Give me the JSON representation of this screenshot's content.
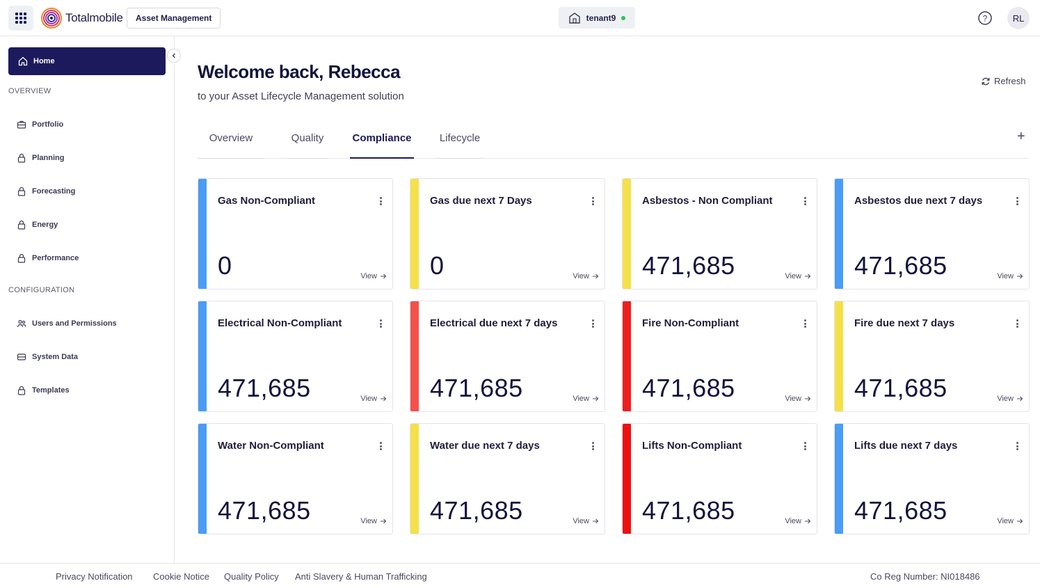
{
  "header": {
    "logo_text": "Totalmobile",
    "app_name": "Asset Management",
    "tenant": "tenant9",
    "user_initials": "RL",
    "tenant_status_color": "#22c55e"
  },
  "sidebar": {
    "home_label": "Home",
    "overview_label": "OVERVIEW",
    "configuration_label": "CONFIGURATION",
    "overview_items": [
      {
        "label": "Portfolio",
        "icon": "portfolio-icon"
      },
      {
        "label": "Planning",
        "icon": "lock-icon"
      },
      {
        "label": "Forecasting",
        "icon": "lock-icon"
      },
      {
        "label": "Energy",
        "icon": "lock-icon"
      },
      {
        "label": "Performance",
        "icon": "lock-icon"
      }
    ],
    "config_items": [
      {
        "label": "Users and Permissions",
        "icon": "users-icon"
      },
      {
        "label": "System Data",
        "icon": "database-icon"
      },
      {
        "label": "Templates",
        "icon": "lock-icon"
      }
    ]
  },
  "main": {
    "welcome": "Welcome back, Rebecca",
    "subtitle": "to your Asset Lifecycle Management solution",
    "refresh_label": "Refresh",
    "tabs": [
      {
        "label": "Overview",
        "active": false
      },
      {
        "label": "Quality",
        "active": false
      },
      {
        "label": "Compliance",
        "active": true
      },
      {
        "label": "Lifecycle",
        "active": false
      }
    ],
    "view_label": "View",
    "cards": [
      {
        "title": "Gas Non-Compliant",
        "value": "0",
        "color": "#4a9cf5"
      },
      {
        "title": "Gas due next 7 Days",
        "value": "0",
        "color": "#f5e04a"
      },
      {
        "title": "Asbestos - Non Compliant",
        "value": "471,685",
        "color": "#f5e04a"
      },
      {
        "title": "Asbestos due next 7 days",
        "value": "471,685",
        "color": "#4a9cf5"
      },
      {
        "title": "Electrical Non-Compliant",
        "value": "471,685",
        "color": "#4a9cf5"
      },
      {
        "title": "Electrical due next 7 days",
        "value": "471,685",
        "color": "#f5504a"
      },
      {
        "title": "Fire Non-Compliant",
        "value": "471,685",
        "color": "#ee1f1f"
      },
      {
        "title": "Fire due next 7 days",
        "value": "471,685",
        "color": "#f5e04a"
      },
      {
        "title": "Water Non-Compliant",
        "value": "471,685",
        "color": "#4a9cf5"
      },
      {
        "title": "Water due next 7 days",
        "value": "471,685",
        "color": "#f5e04a"
      },
      {
        "title": "Lifts Non-Compliant",
        "value": "471,685",
        "color": "#ee1010"
      },
      {
        "title": "Lifts due next 7 days",
        "value": "471,685",
        "color": "#4a9cf5"
      }
    ]
  },
  "footer": {
    "links": [
      "Privacy Notification",
      "Cookie Notice",
      "Quality Policy",
      "Anti Slavery & Human Trafficking"
    ],
    "reg": "Co Reg Number: NI018486"
  }
}
